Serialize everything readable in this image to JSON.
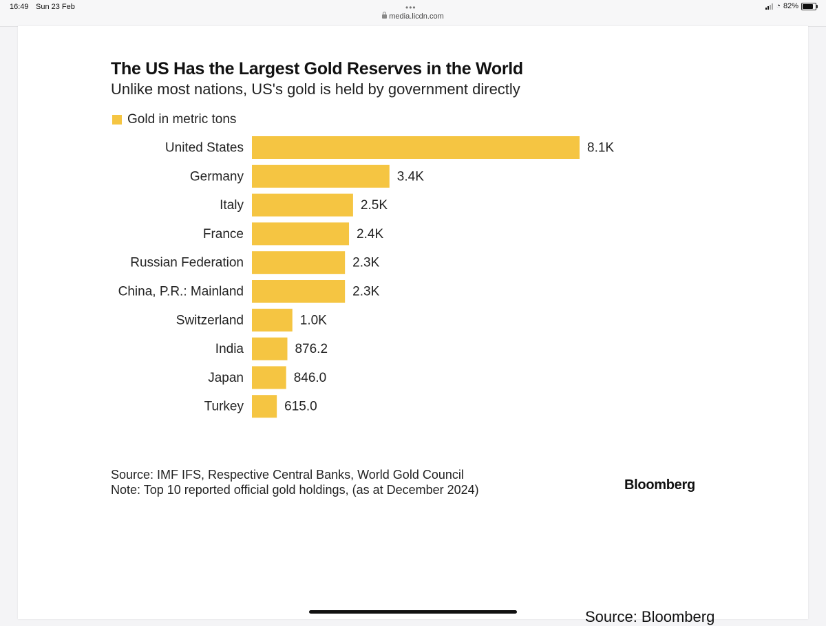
{
  "status_bar": {
    "time": "16:49",
    "date": "Sun 23 Feb",
    "url": "media.licdn.com",
    "battery": "82%",
    "battery_level": 0.82
  },
  "colors": {
    "bar": "#f5c542",
    "text": "#222222"
  },
  "chart_data": {
    "type": "bar",
    "orientation": "horizontal",
    "title": "The US Has the Largest Gold Reserves in the World",
    "subtitle": "Unlike most nations, US's gold is held by government directly",
    "categories": [
      "United States",
      "Germany",
      "Italy",
      "France",
      "Russian Federation",
      "China, P.R.: Mainland",
      "Switzerland",
      "India",
      "Japan",
      "Turkey"
    ],
    "series": [
      {
        "name": "Gold in metric tons",
        "values": [
          8100,
          3400,
          2500,
          2400,
          2300,
          2300,
          1000,
          876.2,
          846.0,
          615.0
        ],
        "labels": [
          "8.1K",
          "3.4K",
          "2.5K",
          "2.4K",
          "2.3K",
          "2.3K",
          "1.0K",
          "876.2",
          "846.0",
          "615.0"
        ]
      }
    ],
    "legend": "top-left",
    "grid": false
  },
  "footer": {
    "source": "Source: IMF IFS, Respective Central Banks, World Gold Council",
    "note": "Note: Top 10 reported official gold holdings, (as at December 2024)",
    "brand": "Bloomberg"
  },
  "caption": "Source: Bloomberg"
}
